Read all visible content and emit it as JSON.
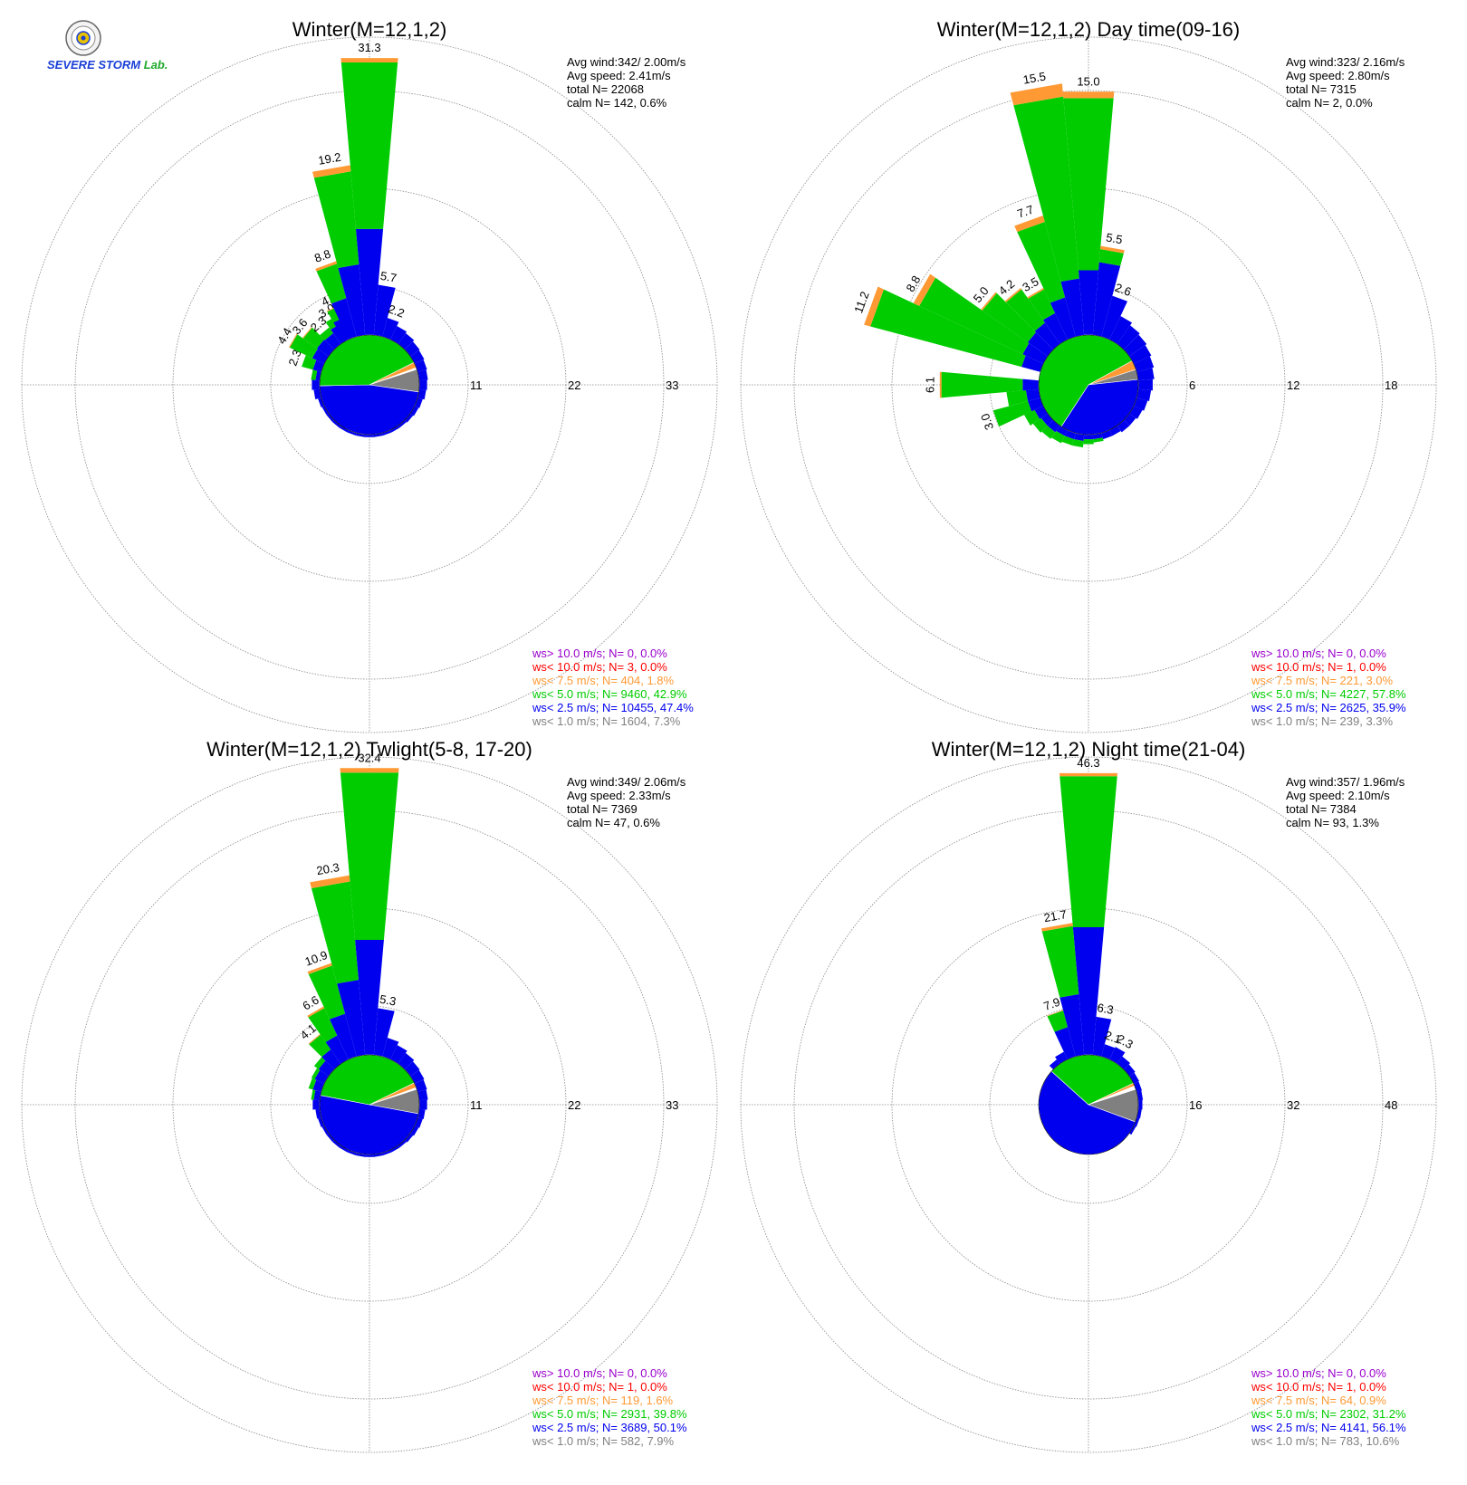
{
  "logo": {
    "name": "severe-storm-lab-logo",
    "text_main": "SEVERE STORM",
    "text_lab": "Lab."
  },
  "colors": {
    "gt10": "#9900cc",
    "lt10": "#ff0000",
    "lt75": "#ff9933",
    "lt5": "#00cc00",
    "lt25": "#0000ee",
    "lt1": "#808080",
    "grid": "#888888",
    "text": "#000000"
  },
  "legend_labels": [
    "ws> 10.0 m/s; N=",
    "ws< 10.0 m/s; N=",
    "ws<  7.5 m/s; N=",
    "ws<  5.0 m/s; N=",
    "ws<  2.5 m/s; N=",
    "ws<  1.0 m/s; N="
  ],
  "chart_data": [
    {
      "type": "windrose",
      "title": "Winter(M=12,1,2)",
      "ring_labels": [
        "11",
        "22",
        "33"
      ],
      "rmax": 33,
      "stats": {
        "avg_wind": "Avg wind:342/ 2.00m/s",
        "avg_speed": "Avg speed: 2.41m/s",
        "total": "total N=      22068",
        "calm": "calm N=    142,   0.6%"
      },
      "legend_values": [
        "0,  0.0%",
        "3,  0.0%",
        "404,  1.8%",
        "9460, 42.9%",
        "10455, 47.4%",
        "1604,  7.3%"
      ],
      "directions": [
        {
          "dir": 0,
          "total": 31.3,
          "lt25": 12,
          "lt5": 18.8,
          "lt75": 0.5
        },
        {
          "dir": 10,
          "total": 5.7,
          "lt25": 5.7
        },
        {
          "dir": 20,
          "total": 2.2,
          "lt25": 2.2
        },
        {
          "dir": 30,
          "total": 1.7,
          "lt25": 1.7
        },
        {
          "dir": 40,
          "total": 1.5,
          "lt25": 1.5
        },
        {
          "dir": 50,
          "total": 1.3,
          "lt25": 1.3
        },
        {
          "dir": 60,
          "total": 1.2,
          "lt25": 1.2
        },
        {
          "dir": 70,
          "total": 1.1,
          "lt25": 1.1
        },
        {
          "dir": 80,
          "total": 1.0,
          "lt25": 1.0
        },
        {
          "dir": 90,
          "total": 0.9,
          "lt25": 0.9
        },
        {
          "dir": 100,
          "total": 0.8,
          "lt25": 0.8
        },
        {
          "dir": 110,
          "total": 0.6,
          "lt25": 0.6
        },
        {
          "dir": 120,
          "total": 0.5,
          "lt25": 0.5
        },
        {
          "dir": 130,
          "total": 0.4,
          "lt25": 0.4
        },
        {
          "dir": 140,
          "total": 0.3,
          "lt25": 0.3
        },
        {
          "dir": 150,
          "total": 0.3,
          "lt25": 0.3
        },
        {
          "dir": 160,
          "total": 0.3,
          "lt25": 0.3
        },
        {
          "dir": 170,
          "total": 0.3,
          "lt25": 0.3
        },
        {
          "dir": 180,
          "total": 0.3,
          "lt25": 0.3
        },
        {
          "dir": 190,
          "total": 0.3,
          "lt25": 0.3
        },
        {
          "dir": 200,
          "total": 0.3,
          "lt25": 0.3
        },
        {
          "dir": 210,
          "total": 0.3,
          "lt25": 0.3
        },
        {
          "dir": 220,
          "total": 0.3,
          "lt25": 0.3
        },
        {
          "dir": 230,
          "total": 0.3,
          "lt25": 0.3
        },
        {
          "dir": 240,
          "total": 0.3,
          "lt25": 0.3
        },
        {
          "dir": 250,
          "total": 0.4,
          "lt25": 0.4
        },
        {
          "dir": 260,
          "total": 0.7,
          "lt25": 0.7
        },
        {
          "dir": 270,
          "total": 0.9,
          "lt25": 0.9
        },
        {
          "dir": 280,
          "total": 1.0,
          "lt25": 0.5,
          "lt5": 0.5
        },
        {
          "dir": 290,
          "total": 2.3,
          "lt25": 1.0,
          "lt5": 1.3
        },
        {
          "dir": 300,
          "total": 4.4,
          "lt25": 1.5,
          "lt5": 2.8,
          "lt75": 0.1
        },
        {
          "dir": 310,
          "total": 3.6,
          "lt25": 1.6,
          "lt5": 1.9,
          "lt75": 0.1
        },
        {
          "dir": 320,
          "total": 2.3,
          "lt25": 1.5,
          "lt5": 0.8
        },
        {
          "dir": 330,
          "total": 3.0,
          "lt25": 2.0,
          "lt5": 1.0
        },
        {
          "dir": 335,
          "total": 4.0,
          "lt25": 2.5,
          "lt5": 1.4,
          "lt75": 0.1
        },
        {
          "dir": 340,
          "total": 8.8,
          "lt25": 4.5,
          "lt5": 4.0,
          "lt75": 0.3
        },
        {
          "dir": 350,
          "total": 19.2,
          "lt25": 8.0,
          "lt5": 10.5,
          "lt75": 0.7
        }
      ],
      "labeled_dirs": [
        0,
        10,
        20,
        290,
        300,
        310,
        320,
        330,
        335,
        340,
        350
      ],
      "pie": {
        "lt1": 7.3,
        "lt25": 47.4,
        "lt5": 42.9,
        "lt75": 1.8,
        "lt10": 0.0,
        "gt10": 0.0
      }
    },
    {
      "type": "windrose",
      "title": "Winter(M=12,1,2) Day time(09-16)",
      "ring_labels": [
        "6",
        "12",
        "18"
      ],
      "rmax": 18,
      "stats": {
        "avg_wind": "Avg wind:323/ 2.16m/s",
        "avg_speed": "Avg speed: 2.80m/s",
        "total": "total N=       7315",
        "calm": "calm N=      2,   0.0%"
      },
      "legend_values": [
        "0,  0.0%",
        "1,  0.0%",
        "221,  3.0%",
        "4227, 57.8%",
        "2625, 35.9%",
        "239,  3.3%"
      ],
      "directions": [
        {
          "dir": 0,
          "total": 15.0,
          "lt25": 4.0,
          "lt5": 10.6,
          "lt75": 0.4
        },
        {
          "dir": 10,
          "total": 5.5,
          "lt25": 4.5,
          "lt5": 0.8,
          "lt75": 0.2
        },
        {
          "dir": 20,
          "total": 2.6,
          "lt25": 2.6
        },
        {
          "dir": 30,
          "total": 1.6,
          "lt25": 1.6
        },
        {
          "dir": 40,
          "total": 1.4,
          "lt25": 1.4
        },
        {
          "dir": 50,
          "total": 1.3,
          "lt25": 1.3
        },
        {
          "dir": 60,
          "total": 1.2,
          "lt25": 1.2
        },
        {
          "dir": 70,
          "total": 1.1,
          "lt25": 1.1
        },
        {
          "dir": 80,
          "total": 1.0,
          "lt25": 1.0
        },
        {
          "dir": 90,
          "total": 0.9,
          "lt25": 0.9
        },
        {
          "dir": 100,
          "total": 0.8,
          "lt25": 0.8
        },
        {
          "dir": 110,
          "total": 0.7,
          "lt25": 0.7
        },
        {
          "dir": 120,
          "total": 0.6,
          "lt25": 0.6
        },
        {
          "dir": 130,
          "total": 0.5,
          "lt25": 0.5
        },
        {
          "dir": 140,
          "total": 0.5,
          "lt25": 0.5
        },
        {
          "dir": 150,
          "total": 0.4,
          "lt25": 0.4
        },
        {
          "dir": 160,
          "total": 0.4,
          "lt25": 0.4
        },
        {
          "dir": 170,
          "total": 0.5,
          "lt25": 0.3,
          "lt5": 0.2
        },
        {
          "dir": 180,
          "total": 0.6,
          "lt25": 0.3,
          "lt5": 0.3
        },
        {
          "dir": 190,
          "total": 0.8,
          "lt25": 0.4,
          "lt5": 0.4
        },
        {
          "dir": 200,
          "total": 0.8,
          "lt25": 0.4,
          "lt5": 0.4
        },
        {
          "dir": 210,
          "total": 0.9,
          "lt25": 0.4,
          "lt5": 0.5
        },
        {
          "dir": 220,
          "total": 1.0,
          "lt25": 0.5,
          "lt5": 0.5
        },
        {
          "dir": 230,
          "total": 1.1,
          "lt25": 0.5,
          "lt5": 0.6
        },
        {
          "dir": 240,
          "total": 1.3,
          "lt25": 0.6,
          "lt5": 0.7
        },
        {
          "dir": 250,
          "total": 3.0,
          "lt25": 0.8,
          "lt5": 2.2
        },
        {
          "dir": 260,
          "total": 2.0,
          "lt25": 0.8,
          "lt5": 1.2
        },
        {
          "dir": 270,
          "total": 6.1,
          "lt25": 1.0,
          "lt5": 5.0,
          "lt75": 0.1
        },
        {
          "dir": 290,
          "total": 11.2,
          "lt25": 1.2,
          "lt5": 9.6,
          "lt75": 0.4
        },
        {
          "dir": 300,
          "total": 8.8,
          "lt25": 1.4,
          "lt5": 7.0,
          "lt75": 0.4
        },
        {
          "dir": 310,
          "total": 5.0,
          "lt25": 1.5,
          "lt5": 3.4,
          "lt75": 0.1
        },
        {
          "dir": 320,
          "total": 4.2,
          "lt25": 1.6,
          "lt5": 2.5,
          "lt75": 0.1
        },
        {
          "dir": 330,
          "total": 3.5,
          "lt25": 1.8,
          "lt5": 1.6,
          "lt75": 0.1
        },
        {
          "dir": 340,
          "total": 7.7,
          "lt25": 2.5,
          "lt5": 4.8,
          "lt75": 0.4
        },
        {
          "dir": 350,
          "total": 15.5,
          "lt25": 3.5,
          "lt5": 11.2,
          "lt75": 0.8
        }
      ],
      "labeled_dirs": [
        0,
        10,
        20,
        250,
        270,
        290,
        300,
        310,
        320,
        330,
        340,
        350
      ],
      "pie": {
        "lt1": 3.3,
        "lt25": 35.9,
        "lt5": 57.8,
        "lt75": 3.0,
        "lt10": 0.0,
        "gt10": 0.0
      }
    },
    {
      "type": "windrose",
      "title": "Winter(M=12,1,2) Twlight(5-8, 17-20)",
      "ring_labels": [
        "11",
        "22",
        "33"
      ],
      "rmax": 33,
      "stats": {
        "avg_wind": "Avg wind:349/ 2.06m/s",
        "avg_speed": "Avg speed: 2.33m/s",
        "total": "total N=       7369",
        "calm": "calm N=     47,   0.6%"
      },
      "legend_values": [
        "0,  0.0%",
        "1,  0.0%",
        "119,  1.6%",
        "2931, 39.8%",
        "3689, 50.1%",
        "582,  7.9%"
      ],
      "directions": [
        {
          "dir": 0,
          "total": 32.4,
          "lt25": 13.0,
          "lt5": 18.9,
          "lt75": 0.5
        },
        {
          "dir": 10,
          "total": 5.3,
          "lt25": 5.3
        },
        {
          "dir": 20,
          "total": 2.2,
          "lt25": 2.2
        },
        {
          "dir": 30,
          "total": 1.8,
          "lt25": 1.8
        },
        {
          "dir": 40,
          "total": 1.5,
          "lt25": 1.5
        },
        {
          "dir": 50,
          "total": 1.3,
          "lt25": 1.3
        },
        {
          "dir": 60,
          "total": 1.2,
          "lt25": 1.2
        },
        {
          "dir": 70,
          "total": 1.1,
          "lt25": 1.1
        },
        {
          "dir": 80,
          "total": 1.0,
          "lt25": 1.0
        },
        {
          "dir": 90,
          "total": 0.9,
          "lt25": 0.9
        },
        {
          "dir": 100,
          "total": 0.7,
          "lt25": 0.7
        },
        {
          "dir": 110,
          "total": 0.6,
          "lt25": 0.6
        },
        {
          "dir": 120,
          "total": 0.5,
          "lt25": 0.5
        },
        {
          "dir": 130,
          "total": 0.4,
          "lt25": 0.4
        },
        {
          "dir": 140,
          "total": 0.3,
          "lt25": 0.3
        },
        {
          "dir": 150,
          "total": 0.3,
          "lt25": 0.3
        },
        {
          "dir": 160,
          "total": 0.3,
          "lt25": 0.3
        },
        {
          "dir": 170,
          "total": 0.3,
          "lt25": 0.3
        },
        {
          "dir": 180,
          "total": 0.3,
          "lt25": 0.3
        },
        {
          "dir": 190,
          "total": 0.3,
          "lt25": 0.3
        },
        {
          "dir": 200,
          "total": 0.3,
          "lt25": 0.3
        },
        {
          "dir": 210,
          "total": 0.3,
          "lt25": 0.3
        },
        {
          "dir": 220,
          "total": 0.3,
          "lt25": 0.3
        },
        {
          "dir": 230,
          "total": 0.3,
          "lt25": 0.3
        },
        {
          "dir": 240,
          "total": 0.3,
          "lt25": 0.3
        },
        {
          "dir": 250,
          "total": 0.4,
          "lt25": 0.4
        },
        {
          "dir": 260,
          "total": 0.5,
          "lt25": 0.5
        },
        {
          "dir": 270,
          "total": 0.8,
          "lt25": 0.8
        },
        {
          "dir": 280,
          "total": 1.0,
          "lt25": 0.7,
          "lt5": 0.3
        },
        {
          "dir": 290,
          "total": 1.5,
          "lt25": 1.0,
          "lt5": 0.5
        },
        {
          "dir": 300,
          "total": 1.6,
          "lt25": 1.2,
          "lt5": 0.4
        },
        {
          "dir": 310,
          "total": 2.0,
          "lt25": 1.4,
          "lt5": 0.6
        },
        {
          "dir": 320,
          "total": 4.1,
          "lt25": 2.0,
          "lt5": 2.0,
          "lt75": 0.1
        },
        {
          "dir": 330,
          "total": 6.6,
          "lt25": 3.0,
          "lt5": 3.4,
          "lt75": 0.2
        },
        {
          "dir": 340,
          "total": 10.9,
          "lt25": 5.0,
          "lt5": 5.6,
          "lt75": 0.3
        },
        {
          "dir": 350,
          "total": 20.3,
          "lt25": 8.5,
          "lt5": 11.1,
          "lt75": 0.7
        }
      ],
      "labeled_dirs": [
        0,
        10,
        320,
        330,
        340,
        350
      ],
      "pie": {
        "lt1": 7.9,
        "lt25": 50.1,
        "lt5": 39.8,
        "lt75": 1.6,
        "lt10": 0.0,
        "gt10": 0.0
      }
    },
    {
      "type": "windrose",
      "title": "Winter(M=12,1,2) Night time(21-04)",
      "ring_labels": [
        "16",
        "32",
        "48"
      ],
      "rmax": 48,
      "stats": {
        "avg_wind": "Avg wind:357/ 1.96m/s",
        "avg_speed": "Avg speed: 2.10m/s",
        "total": "total N=       7384",
        "calm": "calm N=     93,   1.3%"
      },
      "legend_values": [
        "0,  0.0%",
        "1,  0.0%",
        "64,  0.9%",
        "2302, 31.2%",
        "4141, 56.1%",
        "783, 10.6%"
      ],
      "directions": [
        {
          "dir": 0,
          "total": 46.3,
          "lt25": 21.0,
          "lt5": 24.8,
          "lt75": 0.5
        },
        {
          "dir": 10,
          "total": 6.3,
          "lt25": 6.3
        },
        {
          "dir": 20,
          "total": 2.1,
          "lt25": 2.1
        },
        {
          "dir": 30,
          "total": 2.3,
          "lt25": 2.3
        },
        {
          "dir": 40,
          "total": 1.5,
          "lt25": 1.5
        },
        {
          "dir": 50,
          "total": 1.2,
          "lt25": 1.2
        },
        {
          "dir": 60,
          "total": 1.0,
          "lt25": 1.0
        },
        {
          "dir": 70,
          "total": 0.9,
          "lt25": 0.9
        },
        {
          "dir": 80,
          "total": 0.8,
          "lt25": 0.8
        },
        {
          "dir": 90,
          "total": 0.7,
          "lt25": 0.7
        },
        {
          "dir": 100,
          "total": 0.6,
          "lt25": 0.6
        },
        {
          "dir": 110,
          "total": 0.5,
          "lt25": 0.5
        },
        {
          "dir": 120,
          "total": 0.4,
          "lt25": 0.4
        },
        {
          "dir": 320,
          "total": 0.9,
          "lt25": 0.9
        },
        {
          "dir": 330,
          "total": 1.4,
          "lt25": 1.4
        },
        {
          "dir": 340,
          "total": 7.9,
          "lt25": 5.0,
          "lt5": 2.8,
          "lt75": 0.1
        },
        {
          "dir": 350,
          "total": 21.7,
          "lt25": 10.0,
          "lt5": 11.2,
          "lt75": 0.5
        }
      ],
      "labeled_dirs": [
        0,
        10,
        20,
        30,
        340,
        350
      ],
      "pie": {
        "lt1": 10.6,
        "lt25": 56.1,
        "lt5": 31.2,
        "lt75": 0.9,
        "lt10": 0.0,
        "gt10": 0.0
      }
    }
  ]
}
